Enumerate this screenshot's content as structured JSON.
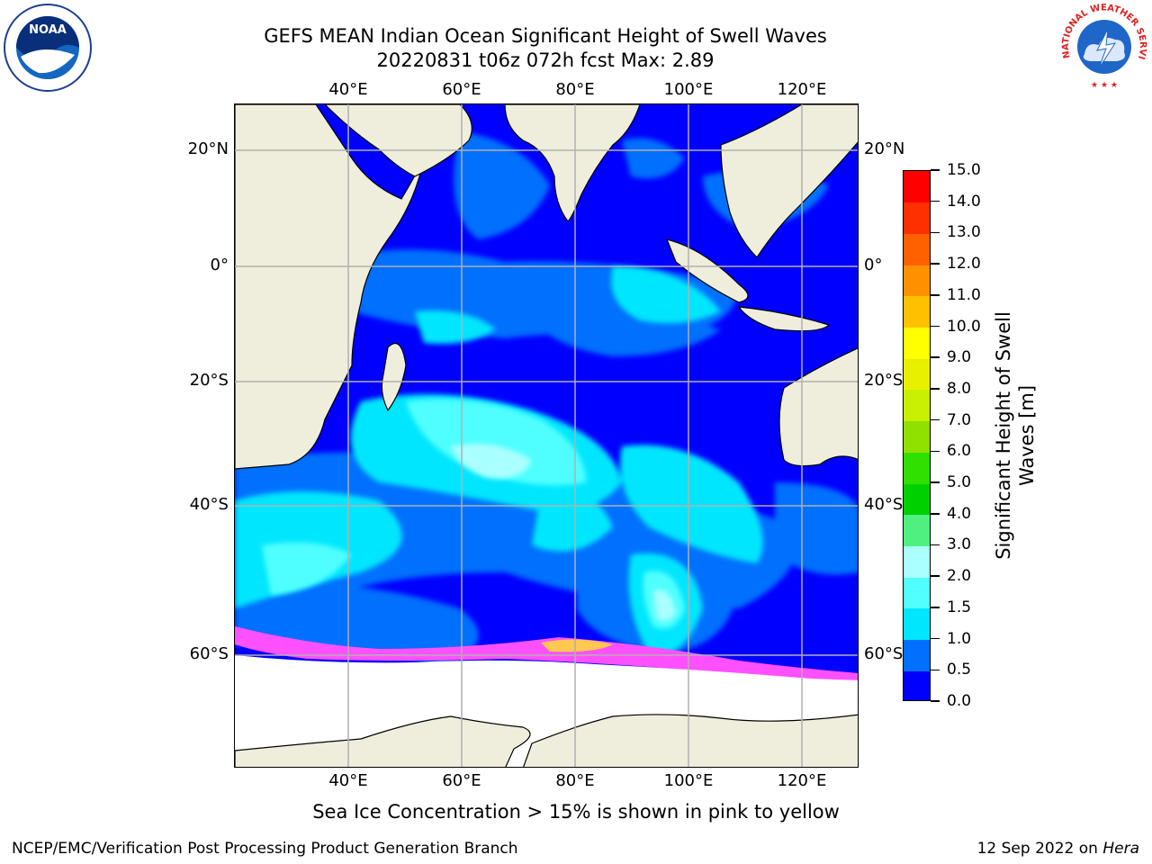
{
  "title": {
    "line1": "GEFS MEAN Indian Ocean Significant Height of Swell Waves",
    "line2": "20220831 t06z 072h fcst   Max: 2.89"
  },
  "axes": {
    "lon_labels": [
      "40°E",
      "60°E",
      "80°E",
      "100°E",
      "120°E"
    ],
    "lat_labels": [
      "20°N",
      "0°",
      "20°S",
      "40°S",
      "60°S"
    ]
  },
  "colorbar": {
    "title_line1": "Significant Height of Swell",
    "title_line2": "Waves [m]",
    "ticks": [
      "0.0",
      "0.5",
      "1.0",
      "1.5",
      "2.0",
      "3.0",
      "4.0",
      "5.0",
      "6.0",
      "7.0",
      "8.0",
      "9.0",
      "10.0",
      "11.0",
      "12.0",
      "13.0",
      "14.0",
      "15.0"
    ],
    "colors": [
      "#0000ff",
      "#0070ff",
      "#00e6ff",
      "#50ffff",
      "#aaffff",
      "#50f080",
      "#00d000",
      "#30e000",
      "#90e000",
      "#c8f000",
      "#e8f000",
      "#ffff00",
      "#ffc000",
      "#ff9000",
      "#ff6000",
      "#ff3000",
      "#ff0000"
    ]
  },
  "logos": {
    "noaa_text": "NOAA",
    "nws_text": "NATIONAL WEATHER SERVICE"
  },
  "caption": "Sea Ice Concentration > 15% is shown in pink to yellow",
  "footer": {
    "left": "NCEP/EMC/Verification Post Processing Product Generation Branch",
    "right_date": "12 Sep 2022 on ",
    "right_host": "Hera"
  }
}
